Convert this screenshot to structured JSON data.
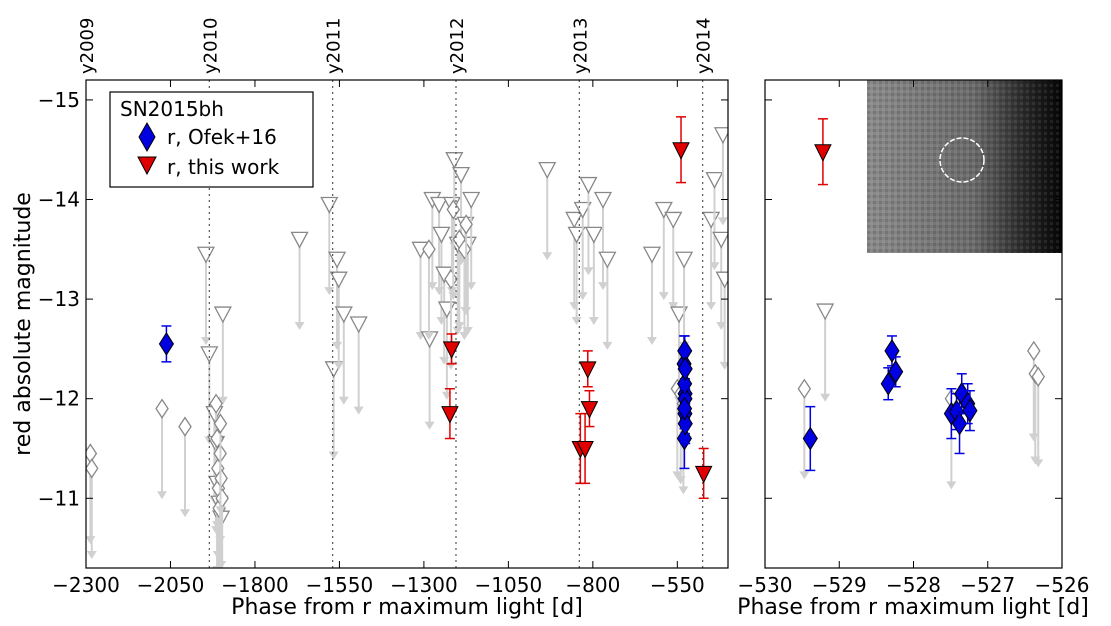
{
  "chart_data": [
    {
      "type": "scatter",
      "title": "",
      "xlabel": "Phase from r maximum light [d]",
      "ylabel": "red absolute magnitude",
      "xlim": [
        -2300,
        -400
      ],
      "ylim": [
        -10.3,
        -15.2
      ],
      "y_inverted": true,
      "xticks": [
        -2300,
        -2050,
        -1800,
        -1550,
        -1300,
        -1050,
        -800,
        -550
      ],
      "xtick_labels": [
        "−2300",
        "−2050",
        "−1800",
        "−1550",
        "−1300",
        "−1050",
        "−800",
        "−550"
      ],
      "yticks": [
        -11,
        -12,
        -13,
        -14,
        -15
      ],
      "ytick_labels": [
        "−11",
        "−12",
        "−13",
        "−14",
        "−15"
      ],
      "year_lines": [
        {
          "label": "y2009",
          "x": -2300
        },
        {
          "label": "y2010",
          "x": -1935
        },
        {
          "label": "y2011",
          "x": -1570
        },
        {
          "label": "y2012",
          "x": -1205
        },
        {
          "label": "y2013",
          "x": -840
        },
        {
          "label": "y2014",
          "x": -475
        }
      ],
      "legend": {
        "title": "SN2015bh",
        "placement": "upper-left",
        "entries": [
          {
            "label": "r, Ofek+16",
            "marker": "diamond",
            "color": "#0000e0"
          },
          {
            "label": "r, this work",
            "marker": "triangle-down",
            "color": "#e00000"
          }
        ]
      },
      "series": [
        {
          "name": "r, Ofek+16",
          "marker": "diamond",
          "color": "#0000e0",
          "points": [
            {
              "x": -2062,
              "y": -12.55,
              "err": 0.18
            },
            {
              "x": -530,
              "y": -12.35,
              "err": 0.28
            },
            {
              "x": -527,
              "y": -12.05,
              "err": 0.25
            },
            {
              "x": -528,
              "y": -12.48,
              "err": 0.15
            },
            {
              "x": -529,
              "y": -11.6,
              "err": 0.3
            },
            {
              "x": -527.5,
              "y": -11.85,
              "err": 0.2
            },
            {
              "x": -527.3,
              "y": -12.0,
              "err": 0.2
            },
            {
              "x": -528.3,
              "y": -12.15,
              "err": 0.2
            },
            {
              "x": -526.5,
              "y": -11.75,
              "err": 0.2
            },
            {
              "x": -526.8,
              "y": -12.3,
              "err": 0.2
            },
            {
              "x": -528.6,
              "y": -11.9,
              "err": 0.2
            }
          ]
        },
        {
          "name": "r, this work",
          "marker": "triangle-down",
          "color": "#e00000",
          "points": [
            {
              "x": -1218,
              "y": -12.5,
              "err": 0.15
            },
            {
              "x": -1223,
              "y": -11.85,
              "err": 0.25
            },
            {
              "x": -837,
              "y": -11.5,
              "err": 0.35
            },
            {
              "x": -823,
              "y": -11.5,
              "err": 0.35
            },
            {
              "x": -815,
              "y": -12.3,
              "err": 0.18
            },
            {
              "x": -810,
              "y": -11.9,
              "err": 0.18
            },
            {
              "x": -539,
              "y": -14.5,
              "err": 0.33
            },
            {
              "x": -472,
              "y": -11.25,
              "err": 0.25
            }
          ]
        },
        {
          "marker": "triangle-down-open",
          "color": "#888888",
          "upper_limits": true,
          "points": [
            {
              "x": -1945,
              "y": -13.45
            },
            {
              "x": -1935,
              "y": -12.45
            },
            {
              "x": -1920,
              "y": -11.85
            },
            {
              "x": -1915,
              "y": -11.55
            },
            {
              "x": -1912,
              "y": -11.15
            },
            {
              "x": -1905,
              "y": -10.95
            },
            {
              "x": -1900,
              "y": -10.8
            },
            {
              "x": -1895,
              "y": -12.85
            },
            {
              "x": -1668,
              "y": -13.6
            },
            {
              "x": -1580,
              "y": -13.95
            },
            {
              "x": -1567,
              "y": -12.3
            },
            {
              "x": -1557,
              "y": -13.4
            },
            {
              "x": -1552,
              "y": -13.2
            },
            {
              "x": -1537,
              "y": -12.85
            },
            {
              "x": -1493,
              "y": -12.75
            },
            {
              "x": -1310,
              "y": -13.5
            },
            {
              "x": -1283,
              "y": -12.6
            },
            {
              "x": -1275,
              "y": -14.0
            },
            {
              "x": -1255,
              "y": -13.95
            },
            {
              "x": -1248,
              "y": -13.65
            },
            {
              "x": -1240,
              "y": -13.25
            },
            {
              "x": -1232,
              "y": -12.9
            },
            {
              "x": -1217,
              "y": -13.95
            },
            {
              "x": -1210,
              "y": -14.4
            },
            {
              "x": -1200,
              "y": -13.55
            },
            {
              "x": -1190,
              "y": -14.25
            },
            {
              "x": -1177,
              "y": -13.75
            },
            {
              "x": -1170,
              "y": -13.55
            },
            {
              "x": -1160,
              "y": -14.0
            },
            {
              "x": -935,
              "y": -14.3
            },
            {
              "x": -855,
              "y": -13.8
            },
            {
              "x": -848,
              "y": -13.65
            },
            {
              "x": -830,
              "y": -13.9
            },
            {
              "x": -813,
              "y": -14.15
            },
            {
              "x": -797,
              "y": -13.65
            },
            {
              "x": -770,
              "y": -14.0
            },
            {
              "x": -757,
              "y": -13.4
            },
            {
              "x": -625,
              "y": -13.45
            },
            {
              "x": -590,
              "y": -13.9
            },
            {
              "x": -562,
              "y": -13.8
            },
            {
              "x": -545,
              "y": -12.85
            },
            {
              "x": -530,
              "y": -13.4
            },
            {
              "x": -450,
              "y": -13.8
            },
            {
              "x": -440,
              "y": -14.2
            },
            {
              "x": -420,
              "y": -13.6
            },
            {
              "x": -415,
              "y": -14.65
            },
            {
              "x": -410,
              "y": -13.2
            }
          ]
        },
        {
          "marker": "diamond-open",
          "color": "#888888",
          "upper_limits": true,
          "points": [
            {
              "x": -2287,
              "y": -11.45
            },
            {
              "x": -2283,
              "y": -11.3
            },
            {
              "x": -2075,
              "y": -11.9
            },
            {
              "x": -2007,
              "y": -11.72
            },
            {
              "x": -1915,
              "y": -11.95
            },
            {
              "x": -1912,
              "y": -11.6
            },
            {
              "x": -1910,
              "y": -11.3
            },
            {
              "x": -1908,
              "y": -11.1
            },
            {
              "x": -1906,
              "y": -10.9
            },
            {
              "x": -1903,
              "y": -11.45
            },
            {
              "x": -1900,
              "y": -11.2
            },
            {
              "x": -1897,
              "y": -11.0
            },
            {
              "x": -1902,
              "y": -11.75
            },
            {
              "x": -1285,
              "y": -13.5
            },
            {
              "x": -1220,
              "y": -13.2
            },
            {
              "x": -1213,
              "y": -13.9
            },
            {
              "x": -1195,
              "y": -13.6
            },
            {
              "x": -1180,
              "y": -13.5
            },
            {
              "x": -1175,
              "y": -13.75
            },
            {
              "x": -550,
              "y": -12.1
            },
            {
              "x": -540,
              "y": -12.05
            },
            {
              "x": -532,
              "y": -11.95
            }
          ]
        }
      ]
    },
    {
      "type": "scatter",
      "title": "",
      "xlabel": "Phase from r maximum light [d]",
      "ylabel": "",
      "xlim": [
        -530,
        -526
      ],
      "ylim": [
        -10.3,
        -15.2
      ],
      "y_inverted": true,
      "xticks": [
        -530,
        -529,
        -528,
        -527,
        -526
      ],
      "xtick_labels": [
        "−530",
        "−529",
        "−528",
        "−527",
        "−526"
      ],
      "inset_image": {
        "description_icon": "sky-cutout-image",
        "circle_marker": true
      },
      "series": [
        {
          "name": "r, Ofek+16",
          "marker": "diamond",
          "color": "#0000e0",
          "points": [
            {
              "x": -529.39,
              "y": -11.6,
              "err": 0.32
            },
            {
              "x": -528.34,
              "y": -12.15,
              "err": 0.16
            },
            {
              "x": -528.29,
              "y": -12.48,
              "err": 0.15
            },
            {
              "x": -528.24,
              "y": -12.27,
              "err": 0.15
            },
            {
              "x": -527.49,
              "y": -11.85,
              "err": 0.25
            },
            {
              "x": -527.42,
              "y": -11.87,
              "err": 0.18
            },
            {
              "x": -527.38,
              "y": -11.75,
              "err": 0.3
            },
            {
              "x": -527.35,
              "y": -12.05,
              "err": 0.2
            },
            {
              "x": -527.27,
              "y": -11.95,
              "err": 0.2
            },
            {
              "x": -527.24,
              "y": -11.88,
              "err": 0.2
            }
          ]
        },
        {
          "name": "r, this work",
          "marker": "triangle-down",
          "color": "#e00000",
          "points": [
            {
              "x": -529.22,
              "y": -14.48,
              "err": 0.33
            }
          ]
        },
        {
          "marker": "triangle-down-open",
          "color": "#888888",
          "upper_limits": true,
          "points": [
            {
              "x": -529.19,
              "y": -12.88
            }
          ]
        },
        {
          "marker": "diamond-open",
          "color": "#888888",
          "upper_limits": true,
          "points": [
            {
              "x": -529.47,
              "y": -12.1
            },
            {
              "x": -527.49,
              "y": -12.0
            },
            {
              "x": -526.38,
              "y": -12.48
            },
            {
              "x": -526.36,
              "y": -12.25
            },
            {
              "x": -526.32,
              "y": -12.22
            }
          ]
        }
      ]
    }
  ]
}
